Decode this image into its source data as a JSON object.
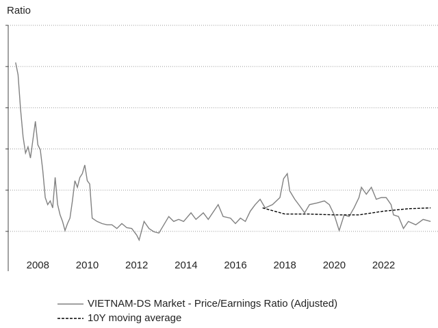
{
  "chart_data": {
    "type": "line",
    "title": "Ratio",
    "xlim": [
      2006.8,
      2024.2
    ],
    "xticks": [
      2008,
      2010,
      2012,
      2014,
      2016,
      2018,
      2020,
      2022
    ],
    "ylim": [
      4,
      60
    ],
    "yticks": [
      10,
      20,
      30,
      40,
      50,
      60
    ],
    "grid": true,
    "legend": "bottom",
    "series": [
      {
        "name": "VIETNAM-DS Market - Price/Earnings Ratio (Adjusted)",
        "color": "#808080",
        "dash": false,
        "x": [
          2007.1,
          2007.2,
          2007.3,
          2007.4,
          2007.5,
          2007.6,
          2007.7,
          2007.9,
          2008.0,
          2008.1,
          2008.2,
          2008.3,
          2008.4,
          2008.5,
          2008.6,
          2008.7,
          2008.8,
          2008.9,
          2009.0,
          2009.1,
          2009.2,
          2009.3,
          2009.4,
          2009.5,
          2009.6,
          2009.7,
          2009.8,
          2009.9,
          2010.0,
          2010.1,
          2010.2,
          2010.4,
          2010.6,
          2010.8,
          2011.0,
          2011.2,
          2011.4,
          2011.6,
          2011.8,
          2012.0,
          2012.1,
          2012.3,
          2012.5,
          2012.7,
          2012.9,
          2013.1,
          2013.3,
          2013.5,
          2013.7,
          2013.9,
          2014.2,
          2014.4,
          2014.7,
          2014.9,
          2015.3,
          2015.5,
          2015.8,
          2016.0,
          2016.2,
          2016.4,
          2016.6,
          2016.8,
          2017.0,
          2017.2,
          2017.5,
          2017.8,
          2017.95,
          2018.1,
          2018.2,
          2018.4,
          2018.6,
          2018.8,
          2019.0,
          2019.3,
          2019.6,
          2019.8,
          2020.0,
          2020.2,
          2020.4,
          2020.6,
          2020.8,
          2021.0,
          2021.1,
          2021.3,
          2021.5,
          2021.7,
          2021.9,
          2022.1,
          2022.3,
          2022.4,
          2022.6,
          2022.8,
          2023.0,
          2023.3,
          2023.6,
          2023.9
        ],
        "values": [
          51,
          48,
          39.7,
          33,
          29,
          30.5,
          27.8,
          36.7,
          31,
          29.8,
          24.8,
          18.2,
          16.5,
          17.4,
          15.7,
          23.1,
          16.5,
          14,
          12.4,
          10.2,
          11.9,
          13.2,
          17.4,
          22.3,
          20.7,
          23.1,
          24,
          26.1,
          22.3,
          21.5,
          13.2,
          12.4,
          11.9,
          11.6,
          11.6,
          10.7,
          11.9,
          10.9,
          10.7,
          9.1,
          7.9,
          12.4,
          10.7,
          9.9,
          9.6,
          11.6,
          13.6,
          12.4,
          12.9,
          12.4,
          14.5,
          12.9,
          14.5,
          12.9,
          16.5,
          13.6,
          13.2,
          11.9,
          13.2,
          12.4,
          14.9,
          16.5,
          17.8,
          15.7,
          16.5,
          18.2,
          22.8,
          24,
          19.8,
          17.8,
          16.2,
          14.5,
          16.5,
          16.9,
          17.4,
          16.5,
          14,
          10.2,
          14,
          13.6,
          15.7,
          18.2,
          20.7,
          19,
          20.7,
          17.8,
          18.2,
          18.2,
          16.5,
          14,
          13.6,
          10.7,
          12.4,
          11.6,
          12.9,
          12.4
        ]
      },
      {
        "name": "10Y moving average",
        "color": "#000000",
        "dash": true,
        "x": [
          2017.1,
          2018.0,
          2019.0,
          2020.0,
          2021.0,
          2022.0,
          2023.0,
          2023.9
        ],
        "values": [
          15.7,
          14.2,
          14.2,
          14,
          14,
          14.9,
          15.5,
          15.7
        ]
      }
    ]
  }
}
